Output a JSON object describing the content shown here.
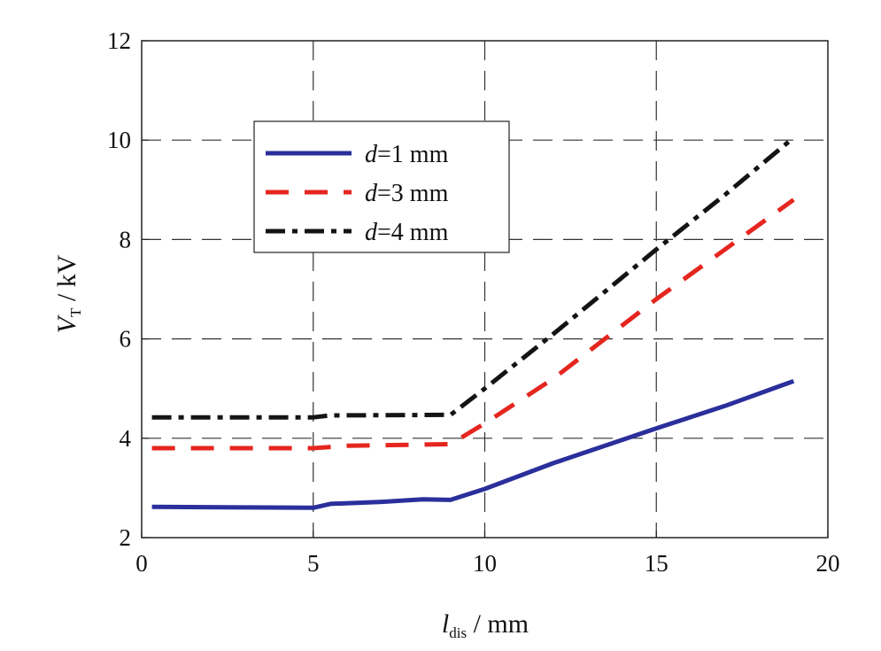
{
  "chart_data": {
    "type": "line",
    "xlabel": {
      "var": "l",
      "sub": "dis",
      "unit": " / mm"
    },
    "ylabel": {
      "var": "V",
      "sub": "T",
      "unit": " / kV"
    },
    "xlim": [
      0,
      20
    ],
    "ylim": [
      2,
      12
    ],
    "xticks": [
      0,
      5,
      10,
      15,
      20
    ],
    "yticks": [
      2,
      4,
      6,
      8,
      10,
      12
    ],
    "grid": true,
    "legend_position": "upper-left",
    "series": [
      {
        "name_var": "d",
        "name_rest": "=1 mm",
        "color": "#2b2f9b",
        "style": "solid",
        "x": [
          0.3,
          5.0,
          5.5,
          7.0,
          8.2,
          9.0,
          10.0,
          12.0,
          15.0,
          17.0,
          19.0
        ],
        "y": [
          2.62,
          2.6,
          2.68,
          2.72,
          2.77,
          2.76,
          2.98,
          3.5,
          4.2,
          4.65,
          5.15
        ]
      },
      {
        "name_var": "d",
        "name_rest": "=3 mm",
        "color": "#e5261f",
        "style": "dashed",
        "x": [
          0.3,
          5.0,
          6.0,
          9.0,
          10.0,
          12.0,
          15.0,
          17.0,
          19.0
        ],
        "y": [
          3.8,
          3.8,
          3.85,
          3.88,
          4.3,
          5.2,
          6.8,
          7.8,
          8.8
        ]
      },
      {
        "name_var": "d",
        "name_rest": "=4 mm",
        "color": "#141414",
        "style": "dashdot",
        "x": [
          0.3,
          5.0,
          5.5,
          9.0,
          10.0,
          12.0,
          15.0,
          17.0,
          19.0
        ],
        "y": [
          4.42,
          4.42,
          4.46,
          4.47,
          5.0,
          6.1,
          7.8,
          8.9,
          10.05
        ]
      }
    ]
  }
}
